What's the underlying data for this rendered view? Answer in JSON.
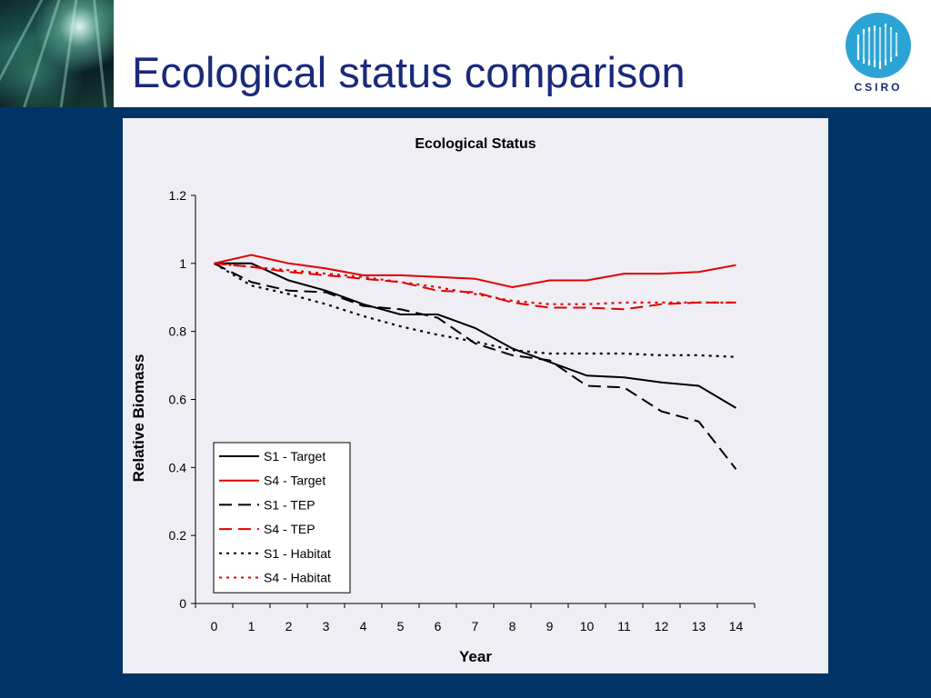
{
  "slide": {
    "title": "Ecological status comparison",
    "logo_text": "CSIRO"
  },
  "colors": {
    "background": "#003366",
    "title": "#1a2a7a",
    "logo": "#2ba4d4",
    "s1": "#000000",
    "s4": "#e00000"
  },
  "chart_data": {
    "type": "line",
    "title": "Ecological Status",
    "xlabel": "Year",
    "ylabel": "Relative Biomass",
    "x": [
      0,
      1,
      2,
      3,
      4,
      5,
      6,
      7,
      8,
      9,
      10,
      11,
      12,
      13,
      14
    ],
    "xlim": [
      0,
      14
    ],
    "ylim": [
      0,
      1.2
    ],
    "yticks": [
      "0",
      "0.2",
      "0.4",
      "0.6",
      "0.8",
      "1",
      "1.2"
    ],
    "xticks": [
      "0",
      "1",
      "2",
      "3",
      "4",
      "5",
      "6",
      "7",
      "8",
      "9",
      "10",
      "11",
      "12",
      "13",
      "14"
    ],
    "grid": false,
    "legend_position": "bottom-left",
    "series": [
      {
        "name": "S1 - Target",
        "color": "#000000",
        "style": "solid",
        "values": [
          1.0,
          1.0,
          0.95,
          0.92,
          0.88,
          0.85,
          0.85,
          0.81,
          0.75,
          0.71,
          0.67,
          0.665,
          0.65,
          0.64,
          0.575
        ]
      },
      {
        "name": "S4 - Target",
        "color": "#e00000",
        "style": "solid",
        "values": [
          1.0,
          1.025,
          1.0,
          0.985,
          0.965,
          0.965,
          0.96,
          0.955,
          0.93,
          0.95,
          0.95,
          0.97,
          0.97,
          0.975,
          0.995
        ]
      },
      {
        "name": "S1 - TEP",
        "color": "#000000",
        "style": "dash",
        "values": [
          1.0,
          0.945,
          0.92,
          0.915,
          0.875,
          0.865,
          0.84,
          0.765,
          0.73,
          0.715,
          0.64,
          0.635,
          0.565,
          0.535,
          0.395
        ]
      },
      {
        "name": "S4 - TEP",
        "color": "#e00000",
        "style": "dash",
        "values": [
          1.0,
          0.99,
          0.975,
          0.965,
          0.955,
          0.945,
          0.92,
          0.915,
          0.885,
          0.87,
          0.87,
          0.865,
          0.88,
          0.885,
          0.885
        ]
      },
      {
        "name": "S1 - Habitat",
        "color": "#000000",
        "style": "dot",
        "values": [
          1.0,
          0.935,
          0.91,
          0.88,
          0.845,
          0.815,
          0.79,
          0.77,
          0.745,
          0.735,
          0.735,
          0.735,
          0.73,
          0.73,
          0.725
        ]
      },
      {
        "name": "S4 - Habitat",
        "color": "#e00000",
        "style": "dot",
        "values": [
          1.0,
          0.99,
          0.98,
          0.97,
          0.96,
          0.945,
          0.93,
          0.91,
          0.89,
          0.88,
          0.88,
          0.885,
          0.885,
          0.885,
          0.885
        ]
      }
    ]
  }
}
